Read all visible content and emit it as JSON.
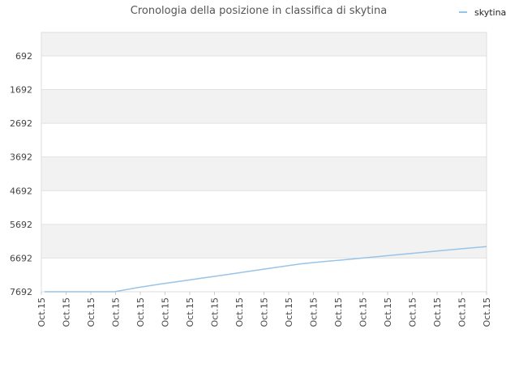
{
  "chart_data": {
    "type": "line",
    "title": "Cronologia della posizione in classifica di skytina",
    "xlabel": "",
    "ylabel": "",
    "y_inverted": true,
    "ylim": [
      7692,
      -4
    ],
    "y_ticks": [
      692,
      1692,
      2692,
      3692,
      4692,
      5692,
      6692,
      7692
    ],
    "x_tick_labels": [
      "Oct.15",
      "Oct.15",
      "Oct.15",
      "Oct.15",
      "Oct.15",
      "Oct.15",
      "Oct.15",
      "Oct.15",
      "Oct.15",
      "Oct.15",
      "Oct.15",
      "Oct.15",
      "Oct.15",
      "Oct.15",
      "Oct.15",
      "Oct.15",
      "Oct.15",
      "Oct.15",
      "Oct.15"
    ],
    "grid": true,
    "legend": "top-right",
    "series": [
      {
        "name": "skytina",
        "color": "#99c4ea",
        "values": [
          7692,
          7692,
          7692,
          7692,
          7570,
          7460,
          7365,
          7265,
          7165,
          7065,
          6965,
          6865,
          6795,
          6735,
          6670,
          6605,
          6540,
          6475,
          6410,
          6350
        ]
      }
    ]
  }
}
